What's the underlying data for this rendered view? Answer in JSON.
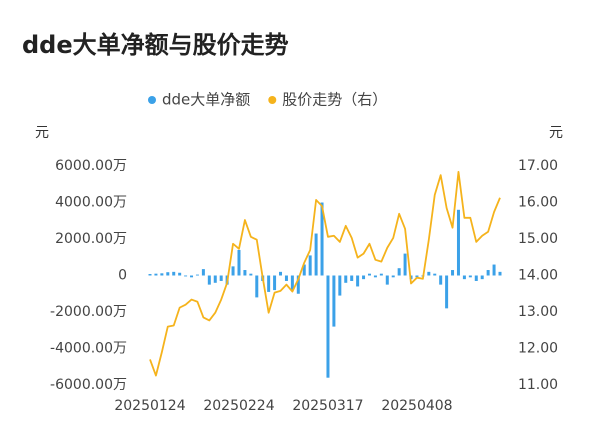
{
  "chart_data": {
    "type": "bar-line",
    "title": "dde大单净额与股价走势",
    "y_unit": "元",
    "y2_unit": "元",
    "categories": [
      "20250124",
      null,
      null,
      null,
      null,
      null,
      null,
      null,
      null,
      null,
      null,
      null,
      null,
      null,
      null,
      "20250224",
      null,
      null,
      null,
      null,
      null,
      null,
      null,
      null,
      null,
      null,
      null,
      null,
      null,
      null,
      "20250317",
      null,
      null,
      null,
      null,
      null,
      null,
      null,
      null,
      null,
      null,
      null,
      null,
      null,
      null,
      "20250408",
      null,
      null,
      null,
      null,
      null,
      null,
      null,
      null,
      null,
      null,
      null,
      null,
      null,
      null
    ],
    "series": [
      {
        "name": "dde大单净额",
        "type": "bar",
        "color": "#3ba1e8",
        "values": [
          80,
          100,
          120,
          180,
          200,
          150,
          -50,
          -100,
          50,
          350,
          -500,
          -400,
          -300,
          -500,
          500,
          1400,
          300,
          100,
          -1200,
          -300,
          -900,
          -800,
          200,
          -300,
          -800,
          -1000,
          600,
          1100,
          2300,
          4000,
          -5600,
          -2800,
          -1100,
          -400,
          -300,
          -600,
          -200,
          100,
          -100,
          100,
          -500,
          -100,
          400,
          1200,
          -200,
          -100,
          -50,
          200,
          100,
          -500,
          -1800,
          300,
          3600,
          -200,
          -100,
          -300,
          -200,
          300,
          600,
          200
        ]
      },
      {
        "name": "股价走势（右）",
        "type": "line",
        "axis": "y2",
        "color": "#f5b31c",
        "values": [
          11.7,
          11.26,
          11.9,
          12.6,
          12.63,
          13.12,
          13.2,
          13.34,
          13.28,
          12.85,
          12.77,
          12.98,
          13.34,
          13.8,
          14.87,
          14.73,
          15.52,
          15.06,
          14.98,
          13.94,
          12.98,
          13.53,
          13.58,
          13.75,
          13.56,
          13.9,
          14.35,
          14.7,
          16.07,
          15.9,
          15.06,
          15.09,
          14.92,
          15.36,
          15.03,
          14.49,
          14.6,
          14.87,
          14.43,
          14.38,
          14.76,
          15.03,
          15.69,
          15.28,
          13.78,
          13.94,
          13.91,
          14.98,
          16.21,
          16.75,
          15.85,
          15.31,
          16.84,
          15.58,
          15.58,
          14.92,
          15.09,
          15.2,
          15.74,
          16.13
        ]
      }
    ],
    "ylim": [
      -6000,
      6000
    ],
    "yticks": [
      {
        "value": -6000,
        "label": "-6000.00万"
      },
      {
        "value": -4000,
        "label": "-4000.00万"
      },
      {
        "value": -2000,
        "label": "-2000.00万"
      },
      0,
      {
        "value": 2000,
        "label": "2000.00万"
      },
      {
        "value": 4000,
        "label": "4000.00万"
      },
      {
        "value": 6000,
        "label": "6000.00万"
      }
    ],
    "y2lim": [
      11,
      17
    ],
    "y2ticks": [
      {
        "value": 11,
        "label": "11.00"
      },
      {
        "value": 12,
        "label": "12.00"
      },
      {
        "value": 13,
        "label": "13.00"
      },
      {
        "value": 14,
        "label": "14.00"
      },
      {
        "value": 15,
        "label": "15.00"
      },
      {
        "value": 16,
        "label": "16.00"
      },
      {
        "value": 17,
        "label": "17.00"
      }
    ]
  }
}
